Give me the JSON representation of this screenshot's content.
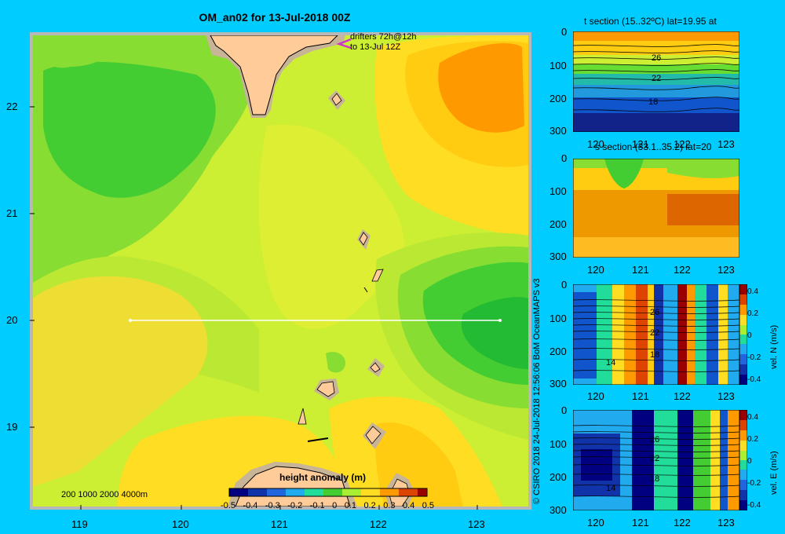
{
  "map": {
    "title": "OM_an02 for 13-Jul-2018 00Z",
    "drifters_line1": "drifters 72h@12h",
    "drifters_line2": "to 13-Jul 12Z",
    "depth_legend": "200  1000  2000  4000m",
    "lat_ticks": [
      "22",
      "21",
      "20",
      "19"
    ],
    "lon_ticks": [
      "119",
      "120",
      "121",
      "122",
      "123"
    ],
    "colorbar_title": "height anomaly (m)",
    "colorbar_ticks": [
      "-0.5",
      "-0.4",
      "-0.3",
      "-0.2",
      "-0.1",
      "0",
      "0.1",
      "0.2",
      "0.3",
      "0.4",
      "0.5"
    ]
  },
  "panels": {
    "t_section_title": "t section (15..32ºC) lat=19.95 at",
    "s_section_title": "s section (33.1..35.2) lat=20",
    "depth_ticks": [
      "0",
      "100",
      "200",
      "300"
    ],
    "lon_ticks": [
      "120",
      "121",
      "122",
      "123"
    ],
    "t_contours": [
      "26",
      "22",
      "18"
    ],
    "vel_contours": [
      "26",
      "22",
      "18",
      "14"
    ],
    "vel_ticks": [
      "0.4",
      "0.2",
      "0",
      "-0.2",
      "-0.4"
    ],
    "vel_n_label": "vel. N (m/s)",
    "vel_e_label": "vel. E (m/s)"
  },
  "credit": "© CSIRO 2018   24-Jul-2018 12:56:06 BoM OceanMAPS v3",
  "colors": {
    "background": "#00ccff",
    "land": "#ffcc99",
    "shelf": "#c8b496",
    "drifter": "#cc33cc",
    "section_line": "#ffffff"
  }
}
